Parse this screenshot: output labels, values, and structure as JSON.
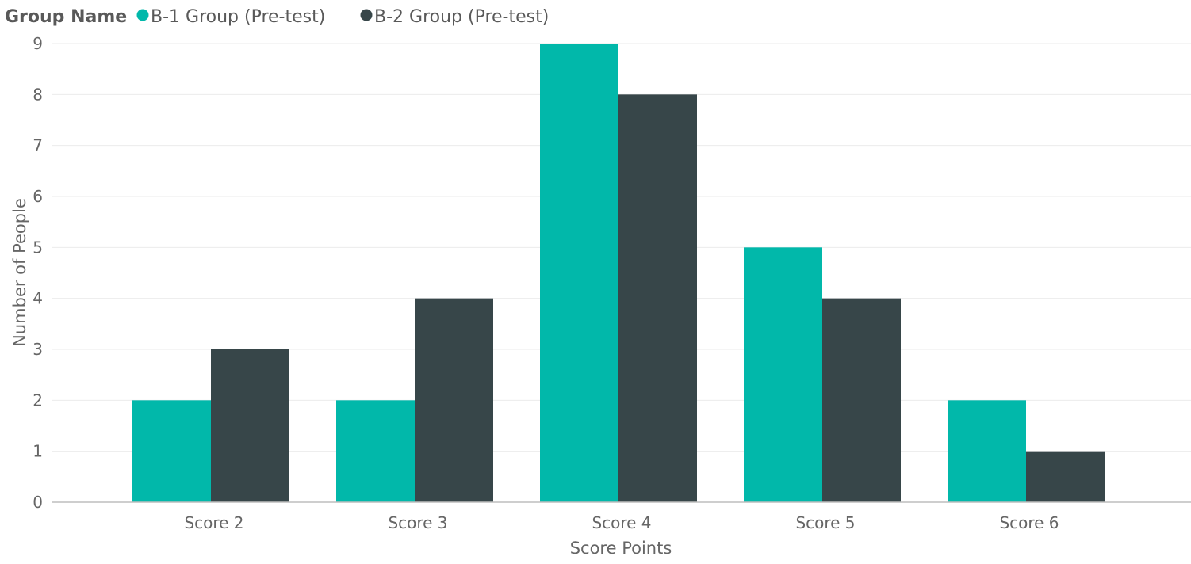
{
  "chart_data": {
    "type": "bar",
    "legend_title": "Group Name",
    "legend_position": "top-left",
    "categories": [
      "Score 2",
      "Score 3",
      "Score 4",
      "Score 5",
      "Score 6"
    ],
    "series": [
      {
        "name": "B-1 Group (Pre-test)",
        "color": "#01B8AA",
        "values": [
          2,
          2,
          9,
          5,
          2
        ]
      },
      {
        "name": "B-2 Group (Pre-test)",
        "color": "#374649",
        "values": [
          3,
          4,
          8,
          4,
          1
        ]
      }
    ],
    "xlabel": "Score Points",
    "ylabel": "Number of People",
    "ylim": [
      0,
      9
    ],
    "yticks": [
      "0",
      "1",
      "2",
      "3",
      "4",
      "5",
      "6",
      "7",
      "8",
      "9"
    ],
    "grid": true
  }
}
